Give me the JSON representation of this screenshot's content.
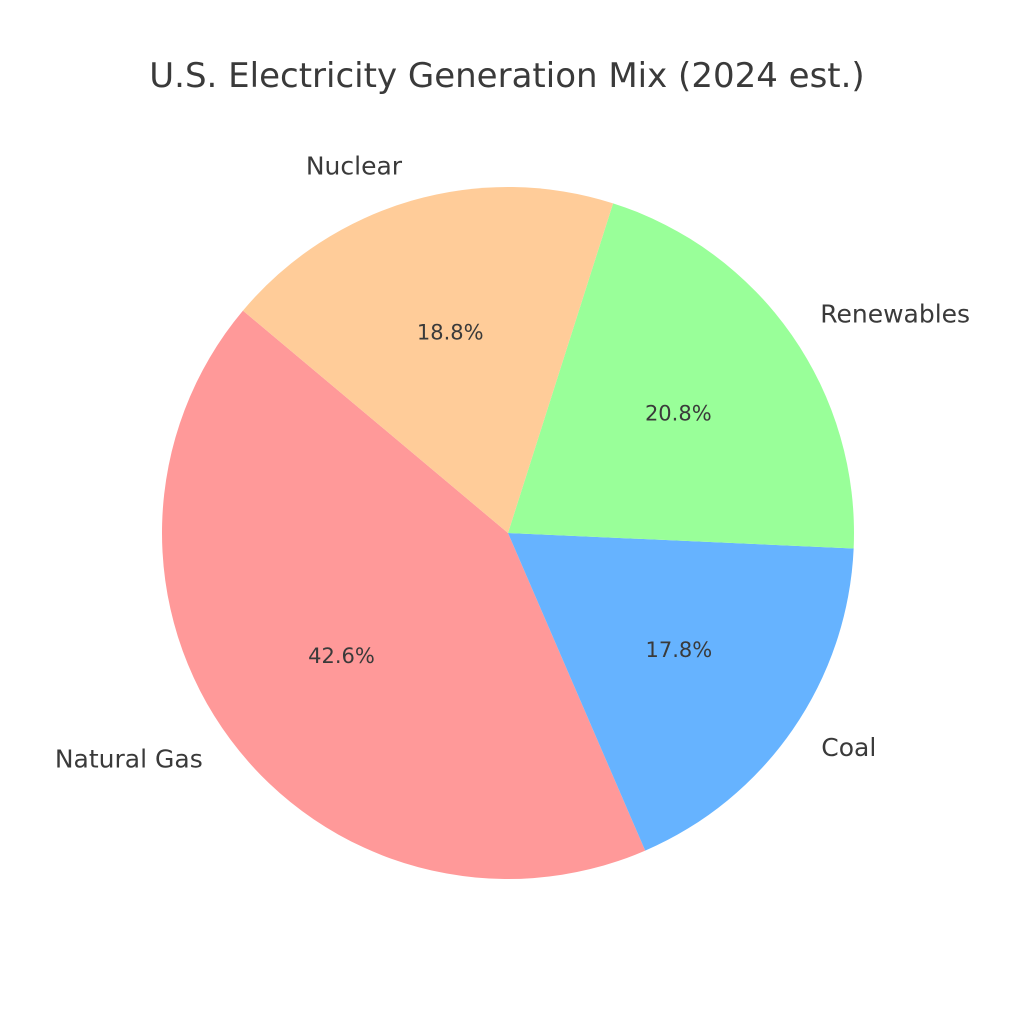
{
  "chart_data": {
    "type": "pie",
    "title": "U.S. Electricity Generation Mix (2024 est.)",
    "slices": [
      {
        "label": "Natural Gas",
        "value": 42.6,
        "pct_text": "42.6%",
        "color": "#ff9999"
      },
      {
        "label": "Coal",
        "value": 17.8,
        "pct_text": "17.8%",
        "color": "#66b3ff"
      },
      {
        "label": "Renewables",
        "value": 20.8,
        "pct_text": "20.8%",
        "color": "#99ff99"
      },
      {
        "label": "Nuclear",
        "value": 18.8,
        "pct_text": "18.8%",
        "color": "#ffcc99"
      }
    ],
    "start_angle_deg": 140,
    "direction": "counterclockwise"
  }
}
